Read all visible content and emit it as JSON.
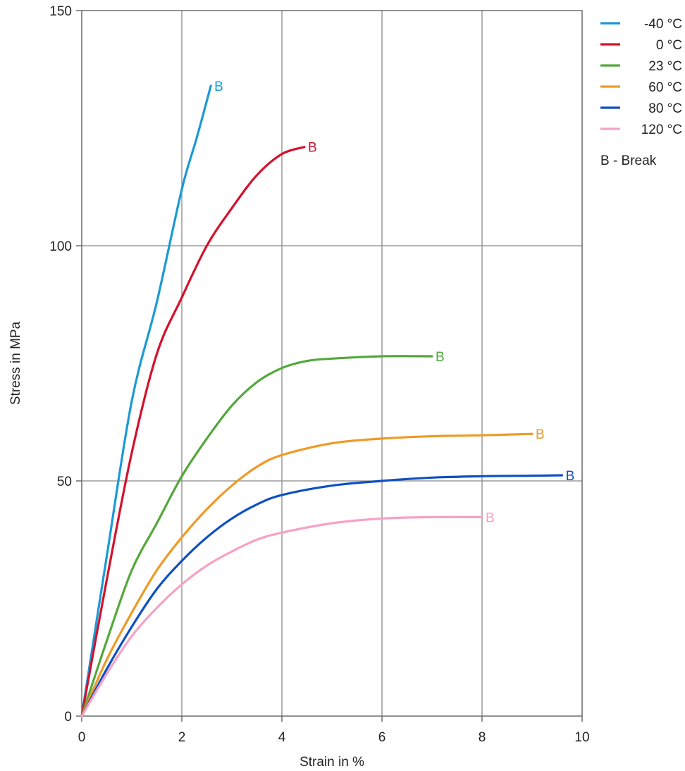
{
  "chart_data": {
    "type": "line",
    "title": "",
    "xlabel": "Strain in  %",
    "ylabel": "Stress in  MPa",
    "xlim": [
      0,
      10
    ],
    "ylim": [
      0,
      150
    ],
    "x_ticks": [
      "0",
      "2",
      "4",
      "6",
      "8",
      "10"
    ],
    "y_ticks": [
      "0",
      "50",
      "100",
      "150"
    ],
    "grid": true,
    "legend_position": "right",
    "break_marker_label": "B",
    "legend_note": "B - Break",
    "series": [
      {
        "name": "-40 °C",
        "color": "#1b9ad6",
        "points": [
          [
            0,
            0
          ],
          [
            0.5,
            34
          ],
          [
            1.0,
            67
          ],
          [
            1.5,
            88
          ],
          [
            2.0,
            112
          ],
          [
            2.3,
            123
          ],
          [
            2.58,
            134
          ]
        ],
        "break": [
          2.58,
          134
        ]
      },
      {
        "name": "0 °C",
        "color": "#d4112c",
        "points": [
          [
            0,
            0
          ],
          [
            0.5,
            29
          ],
          [
            1.0,
            56
          ],
          [
            1.5,
            77
          ],
          [
            2.0,
            89
          ],
          [
            2.5,
            100
          ],
          [
            3.0,
            108
          ],
          [
            3.5,
            115
          ],
          [
            4.0,
            119.5
          ],
          [
            4.45,
            121
          ]
        ],
        "break": [
          4.45,
          121
        ]
      },
      {
        "name": "23 °C",
        "color": "#53a83a",
        "points": [
          [
            0,
            0
          ],
          [
            0.5,
            16
          ],
          [
            1.0,
            31
          ],
          [
            1.5,
            41
          ],
          [
            2.0,
            51
          ],
          [
            2.5,
            59
          ],
          [
            3.0,
            66
          ],
          [
            3.5,
            71
          ],
          [
            4.0,
            74
          ],
          [
            4.5,
            75.5
          ],
          [
            5.0,
            76
          ],
          [
            6.0,
            76.5
          ],
          [
            7.0,
            76.5
          ]
        ],
        "break": [
          7.0,
          76.5
        ]
      },
      {
        "name": "60 °C",
        "color": "#ee9a26",
        "points": [
          [
            0,
            0
          ],
          [
            0.5,
            12
          ],
          [
            1.0,
            22
          ],
          [
            1.5,
            31
          ],
          [
            2.0,
            38
          ],
          [
            2.5,
            44
          ],
          [
            3.0,
            49
          ],
          [
            3.5,
            53
          ],
          [
            4.0,
            55.5
          ],
          [
            5.0,
            58
          ],
          [
            6.0,
            59
          ],
          [
            7.0,
            59.5
          ],
          [
            8.0,
            59.7
          ],
          [
            9.0,
            60
          ]
        ],
        "break": [
          9.0,
          60
        ]
      },
      {
        "name": "80 °C",
        "color": "#0e4fc4",
        "points": [
          [
            0,
            0
          ],
          [
            0.5,
            10
          ],
          [
            1.0,
            19
          ],
          [
            1.5,
            27
          ],
          [
            2.0,
            33
          ],
          [
            2.5,
            38
          ],
          [
            3.0,
            42
          ],
          [
            3.5,
            45
          ],
          [
            4.0,
            47
          ],
          [
            5.0,
            49
          ],
          [
            6.0,
            50
          ],
          [
            7.0,
            50.7
          ],
          [
            8.0,
            51
          ],
          [
            9.0,
            51.1
          ],
          [
            9.6,
            51.2
          ]
        ],
        "break": [
          9.6,
          51.2
        ]
      },
      {
        "name": "120 °C",
        "color": "#f7a1c6",
        "points": [
          [
            0,
            0
          ],
          [
            0.5,
            9
          ],
          [
            1.0,
            17
          ],
          [
            1.5,
            23
          ],
          [
            2.0,
            28
          ],
          [
            2.5,
            32
          ],
          [
            3.0,
            35
          ],
          [
            3.5,
            37.5
          ],
          [
            4.0,
            39
          ],
          [
            5.0,
            41
          ],
          [
            6.0,
            42
          ],
          [
            7.0,
            42.3
          ],
          [
            8.0,
            42.3
          ]
        ],
        "break": [
          8.0,
          42.3
        ]
      }
    ]
  }
}
